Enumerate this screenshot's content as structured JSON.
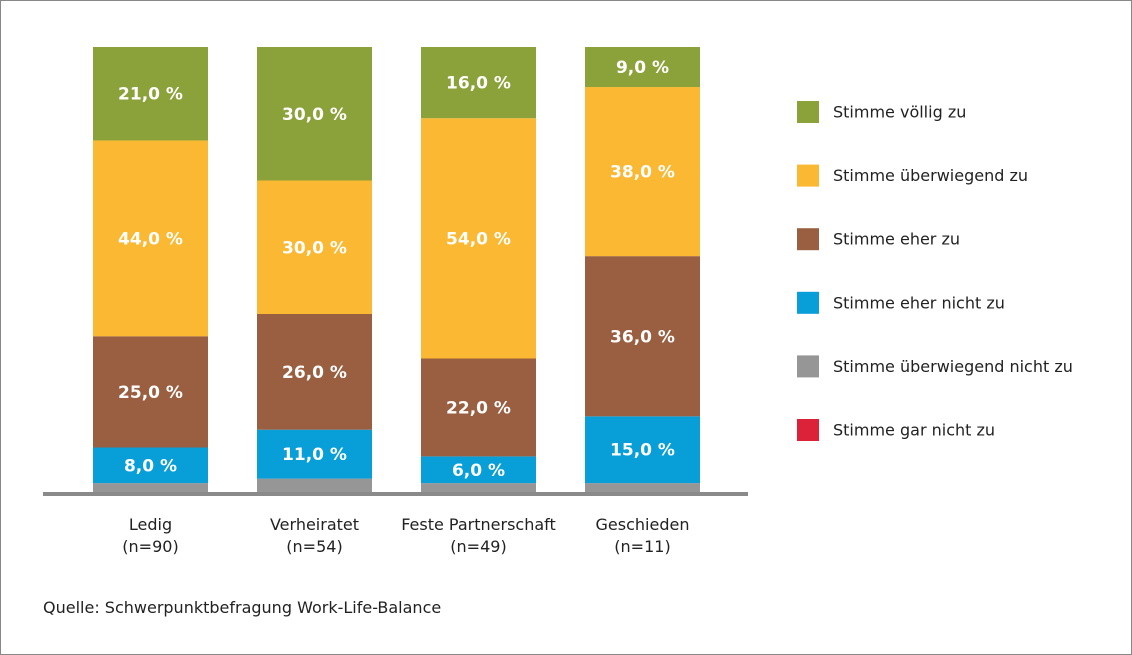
{
  "chart_data": {
    "type": "stacked_bar",
    "categories": [
      "Ledig\n(n=90)",
      "Verheiratet\n(n=54)",
      "Feste Partnerschaft\n(n=49)",
      "Geschieden\n(n=11)"
    ],
    "series": [
      {
        "name": "Stimme völlig zu",
        "color": "#8ba23a",
        "values": [
          21,
          30,
          16,
          9
        ],
        "value_labels": [
          "21,0 %",
          "30,0 %",
          "16,0 %",
          "9,0 %"
        ]
      },
      {
        "name": "Stimme überwiegend zu",
        "color": "#fbb832",
        "values": [
          44,
          30,
          54,
          38
        ],
        "value_labels": [
          "44,0 %",
          "30,0 %",
          "54,0 %",
          "38,0 %"
        ]
      },
      {
        "name": "Stimme eher zu",
        "color": "#9a5f41",
        "values": [
          25,
          26,
          22,
          36
        ],
        "value_labels": [
          "25,0 %",
          "26,0 %",
          "22,0 %",
          "36,0 %"
        ]
      },
      {
        "name": "Stimme eher nicht zu",
        "color": "#089ed8",
        "values": [
          8,
          11,
          6,
          15
        ],
        "value_labels": [
          "8,0 %",
          "11,0 %",
          "6,0 %",
          "15,0 %"
        ]
      },
      {
        "name": "Stimme überwiegend nicht zu",
        "color": "#969696",
        "values": [
          2,
          3,
          2,
          2
        ]
      },
      {
        "name": "Stimme gar nicht zu",
        "color": "#dc2239",
        "values": [
          0,
          0,
          0,
          0
        ]
      }
    ],
    "ylim": [
      0,
      100
    ],
    "source": "Quelle: Schwerpunktbefragung Work-Life-Balance"
  }
}
